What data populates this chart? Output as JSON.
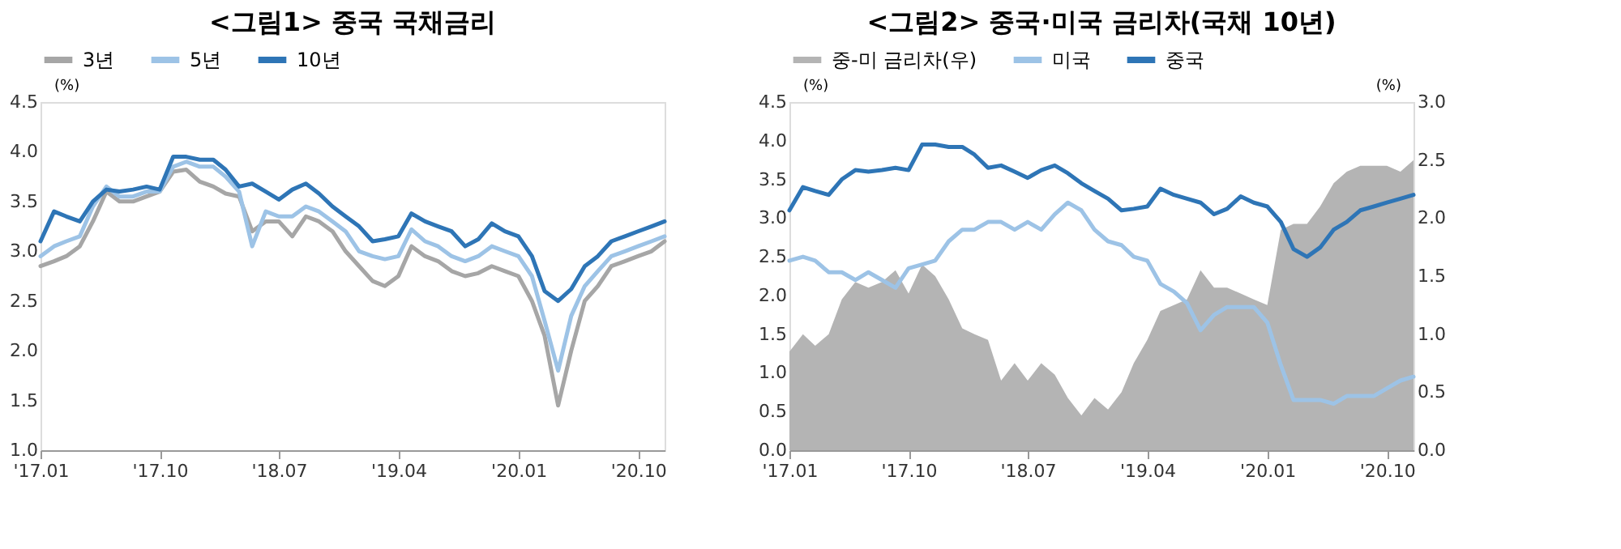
{
  "chart_data": [
    {
      "type": "line",
      "title": "<그림1> 중국 국채금리",
      "ylabel": "(%)",
      "legend": "top",
      "grid": false,
      "x": [
        "2017-01",
        "2017-02",
        "2017-03",
        "2017-04",
        "2017-05",
        "2017-06",
        "2017-07",
        "2017-08",
        "2017-09",
        "2017-10",
        "2017-11",
        "2017-12",
        "2018-01",
        "2018-02",
        "2018-03",
        "2018-04",
        "2018-05",
        "2018-06",
        "2018-07",
        "2018-08",
        "2018-09",
        "2018-10",
        "2018-11",
        "2018-12",
        "2019-01",
        "2019-02",
        "2019-03",
        "2019-04",
        "2019-05",
        "2019-06",
        "2019-07",
        "2019-08",
        "2019-09",
        "2019-10",
        "2019-11",
        "2019-12",
        "2020-01",
        "2020-02",
        "2020-03",
        "2020-04",
        "2020-05",
        "2020-06",
        "2020-07",
        "2020-08",
        "2020-09",
        "2020-10",
        "2020-11",
        "2020-12"
      ],
      "xlim": [
        "2017-01",
        "2020-12"
      ],
      "xticks": [
        {
          "value": "2017-01",
          "label": "'17.01"
        },
        {
          "value": "2017-10",
          "label": "'17.10"
        },
        {
          "value": "2018-07",
          "label": "'18.07"
        },
        {
          "value": "2019-04",
          "label": "'19.04"
        },
        {
          "value": "2020-01",
          "label": "'20.01"
        },
        {
          "value": "2020-10",
          "label": "'20.10"
        }
      ],
      "ylim": [
        1.0,
        4.5
      ],
      "yticks": [
        {
          "value": 1.0,
          "label": "1.0"
        },
        {
          "value": 1.5,
          "label": "1.5"
        },
        {
          "value": 2.0,
          "label": "2.0"
        },
        {
          "value": 2.5,
          "label": "2.5"
        },
        {
          "value": 3.0,
          "label": "3.0"
        },
        {
          "value": 3.5,
          "label": "3.5"
        },
        {
          "value": 4.0,
          "label": "4.0"
        },
        {
          "value": 4.5,
          "label": "4.5"
        }
      ],
      "series": [
        {
          "name": "3년",
          "color": "#a6a6a6",
          "values": [
            2.85,
            2.9,
            2.95,
            3.05,
            3.3,
            3.6,
            3.5,
            3.5,
            3.55,
            3.6,
            3.8,
            3.82,
            3.7,
            3.65,
            3.58,
            3.55,
            3.2,
            3.3,
            3.3,
            3.15,
            3.35,
            3.3,
            3.2,
            3.0,
            2.85,
            2.7,
            2.65,
            2.75,
            3.05,
            2.95,
            2.9,
            2.8,
            2.75,
            2.78,
            2.85,
            2.8,
            2.75,
            2.5,
            2.15,
            1.45,
            2.0,
            2.5,
            2.65,
            2.85,
            2.9,
            2.95,
            3.0,
            3.1
          ]
        },
        {
          "name": "5년",
          "color": "#9dc3e6",
          "values": [
            2.95,
            3.05,
            3.1,
            3.15,
            3.45,
            3.65,
            3.55,
            3.55,
            3.6,
            3.6,
            3.85,
            3.9,
            3.85,
            3.85,
            3.75,
            3.6,
            3.05,
            3.4,
            3.35,
            3.35,
            3.45,
            3.4,
            3.3,
            3.2,
            3.0,
            2.95,
            2.92,
            2.95,
            3.22,
            3.1,
            3.05,
            2.95,
            2.9,
            2.95,
            3.05,
            3.0,
            2.95,
            2.75,
            2.3,
            1.8,
            2.35,
            2.65,
            2.8,
            2.95,
            3.0,
            3.05,
            3.1,
            3.15
          ]
        },
        {
          "name": "10년",
          "color": "#2e75b6",
          "values": [
            3.1,
            3.4,
            3.35,
            3.3,
            3.5,
            3.62,
            3.6,
            3.62,
            3.65,
            3.62,
            3.95,
            3.95,
            3.92,
            3.92,
            3.82,
            3.65,
            3.68,
            3.6,
            3.52,
            3.62,
            3.68,
            3.58,
            3.45,
            3.35,
            3.25,
            3.1,
            3.12,
            3.15,
            3.38,
            3.3,
            3.25,
            3.2,
            3.05,
            3.12,
            3.28,
            3.2,
            3.15,
            2.95,
            2.6,
            2.5,
            2.62,
            2.85,
            2.95,
            3.1,
            3.15,
            3.2,
            3.25,
            3.3
          ]
        }
      ]
    },
    {
      "type": "line",
      "title": "<그림2> 중국·미국 금리차(국채 10년)",
      "ylabel": "(%)",
      "y2label": "(%)",
      "legend": "top",
      "grid": false,
      "x": [
        "2017-01",
        "2017-02",
        "2017-03",
        "2017-04",
        "2017-05",
        "2017-06",
        "2017-07",
        "2017-08",
        "2017-09",
        "2017-10",
        "2017-11",
        "2017-12",
        "2018-01",
        "2018-02",
        "2018-03",
        "2018-04",
        "2018-05",
        "2018-06",
        "2018-07",
        "2018-08",
        "2018-09",
        "2018-10",
        "2018-11",
        "2018-12",
        "2019-01",
        "2019-02",
        "2019-03",
        "2019-04",
        "2019-05",
        "2019-06",
        "2019-07",
        "2019-08",
        "2019-09",
        "2019-10",
        "2019-11",
        "2019-12",
        "2020-01",
        "2020-02",
        "2020-03",
        "2020-04",
        "2020-05",
        "2020-06",
        "2020-07",
        "2020-08",
        "2020-09",
        "2020-10",
        "2020-11",
        "2020-12"
      ],
      "xlim": [
        "2017-01",
        "2020-12"
      ],
      "xticks": [
        {
          "value": "2017-01",
          "label": "'17.01"
        },
        {
          "value": "2017-10",
          "label": "'17.10"
        },
        {
          "value": "2018-07",
          "label": "'18.07"
        },
        {
          "value": "2019-04",
          "label": "'19.04"
        },
        {
          "value": "2020-01",
          "label": "'20.01"
        },
        {
          "value": "2020-10",
          "label": "'20.10"
        }
      ],
      "ylim": [
        0.0,
        4.5
      ],
      "yticks": [
        {
          "value": 0.0,
          "label": "0.0"
        },
        {
          "value": 0.5,
          "label": "0.5"
        },
        {
          "value": 1.0,
          "label": "1.0"
        },
        {
          "value": 1.5,
          "label": "1.5"
        },
        {
          "value": 2.0,
          "label": "2.0"
        },
        {
          "value": 2.5,
          "label": "2.5"
        },
        {
          "value": 3.0,
          "label": "3.0"
        },
        {
          "value": 3.5,
          "label": "3.5"
        },
        {
          "value": 4.0,
          "label": "4.0"
        },
        {
          "value": 4.5,
          "label": "4.5"
        }
      ],
      "y2lim": [
        0.0,
        3.0
      ],
      "y2ticks": [
        {
          "value": 0.0,
          "label": "0.0"
        },
        {
          "value": 0.5,
          "label": "0.5"
        },
        {
          "value": 1.0,
          "label": "1.0"
        },
        {
          "value": 1.5,
          "label": "1.5"
        },
        {
          "value": 2.0,
          "label": "2.0"
        },
        {
          "value": 2.5,
          "label": "2.5"
        },
        {
          "value": 3.0,
          "label": "3.0"
        }
      ],
      "series": [
        {
          "name": "중-미 금리차(우)",
          "type": "area",
          "axis": "y2",
          "color": "#b4b4b4",
          "values": [
            0.85,
            1.0,
            0.9,
            1.0,
            1.3,
            1.45,
            1.4,
            1.45,
            1.55,
            1.35,
            1.6,
            1.5,
            1.3,
            1.05,
            1.0,
            0.95,
            0.6,
            0.75,
            0.6,
            0.75,
            0.65,
            0.45,
            0.3,
            0.45,
            0.35,
            0.5,
            0.75,
            0.95,
            1.2,
            1.25,
            1.3,
            1.55,
            1.4,
            1.4,
            1.35,
            1.3,
            1.25,
            1.9,
            1.95,
            1.95,
            2.1,
            2.3,
            2.4,
            2.45,
            2.45,
            2.45,
            2.4,
            2.5
          ]
        },
        {
          "name": "미국",
          "color": "#9dc3e6",
          "values": [
            2.45,
            2.5,
            2.45,
            2.3,
            2.3,
            2.2,
            2.3,
            2.2,
            2.1,
            2.35,
            2.4,
            2.45,
            2.7,
            2.85,
            2.85,
            2.95,
            2.95,
            2.85,
            2.95,
            2.85,
            3.05,
            3.2,
            3.1,
            2.85,
            2.7,
            2.65,
            2.5,
            2.45,
            2.15,
            2.05,
            1.9,
            1.55,
            1.75,
            1.85,
            1.85,
            1.85,
            1.65,
            1.1,
            0.65,
            0.65,
            0.65,
            0.6,
            0.7,
            0.7,
            0.7,
            0.8,
            0.9,
            0.95
          ]
        },
        {
          "name": "중국",
          "color": "#2e75b6",
          "values": [
            3.1,
            3.4,
            3.35,
            3.3,
            3.5,
            3.62,
            3.6,
            3.62,
            3.65,
            3.62,
            3.95,
            3.95,
            3.92,
            3.92,
            3.82,
            3.65,
            3.68,
            3.6,
            3.52,
            3.62,
            3.68,
            3.58,
            3.45,
            3.35,
            3.25,
            3.1,
            3.12,
            3.15,
            3.38,
            3.3,
            3.25,
            3.2,
            3.05,
            3.12,
            3.28,
            3.2,
            3.15,
            2.95,
            2.6,
            2.5,
            2.62,
            2.85,
            2.95,
            3.1,
            3.15,
            3.2,
            3.25,
            3.3
          ]
        }
      ]
    }
  ]
}
